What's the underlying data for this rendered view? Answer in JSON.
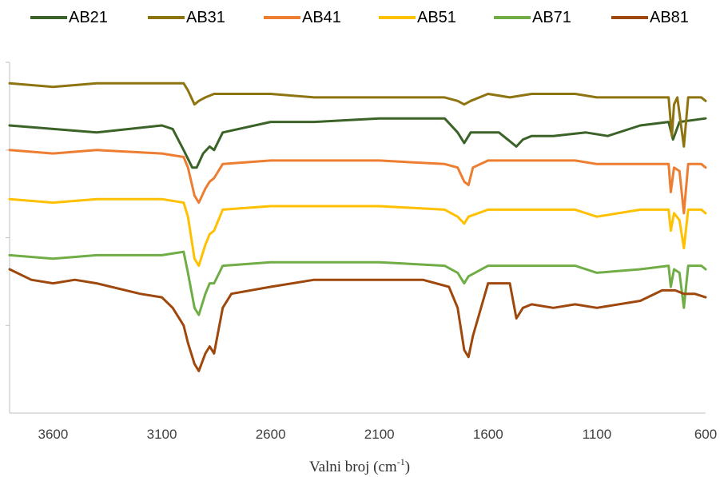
{
  "chart_data": {
    "type": "line",
    "title": "",
    "xlabel": "Valni broj (cm",
    "xlabel_sup": "-1",
    "xlabel_end": ")",
    "ylabel": "",
    "x_reversed": true,
    "xlim": [
      3800,
      600
    ],
    "ylim": [
      0,
      1
    ],
    "y_tick_values": [
      0.25,
      0.5,
      0.75,
      1.0
    ],
    "x_ticks": [
      3600,
      3100,
      2600,
      2100,
      1600,
      1100,
      600
    ],
    "x_tick_labels": [
      "3600",
      "3100",
      "2600",
      "2100",
      "1600",
      "1100",
      "600"
    ],
    "grid": false,
    "legend_position": "top",
    "series": [
      {
        "name": "AB21",
        "color": "#3b6227",
        "points": [
          [
            3800,
            0.82
          ],
          [
            3600,
            0.81
          ],
          [
            3400,
            0.8
          ],
          [
            3100,
            0.82
          ],
          [
            3050,
            0.81
          ],
          [
            3000,
            0.75
          ],
          [
            2960,
            0.7
          ],
          [
            2940,
            0.7
          ],
          [
            2910,
            0.74
          ],
          [
            2880,
            0.76
          ],
          [
            2860,
            0.75
          ],
          [
            2820,
            0.8
          ],
          [
            2600,
            0.83
          ],
          [
            2400,
            0.83
          ],
          [
            2100,
            0.84
          ],
          [
            1800,
            0.84
          ],
          [
            1740,
            0.8
          ],
          [
            1710,
            0.77
          ],
          [
            1680,
            0.8
          ],
          [
            1550,
            0.8
          ],
          [
            1470,
            0.76
          ],
          [
            1440,
            0.78
          ],
          [
            1400,
            0.79
          ],
          [
            1300,
            0.79
          ],
          [
            1150,
            0.8
          ],
          [
            1050,
            0.79
          ],
          [
            900,
            0.82
          ],
          [
            770,
            0.83
          ],
          [
            750,
            0.78
          ],
          [
            720,
            0.83
          ],
          [
            600,
            0.84
          ]
        ]
      },
      {
        "name": "AB31",
        "color": "#8e7410",
        "points": [
          [
            3800,
            0.94
          ],
          [
            3600,
            0.93
          ],
          [
            3400,
            0.94
          ],
          [
            3100,
            0.94
          ],
          [
            3000,
            0.94
          ],
          [
            2980,
            0.92
          ],
          [
            2950,
            0.88
          ],
          [
            2930,
            0.89
          ],
          [
            2900,
            0.9
          ],
          [
            2860,
            0.91
          ],
          [
            2600,
            0.91
          ],
          [
            2400,
            0.9
          ],
          [
            2100,
            0.9
          ],
          [
            1800,
            0.9
          ],
          [
            1740,
            0.89
          ],
          [
            1710,
            0.88
          ],
          [
            1680,
            0.89
          ],
          [
            1600,
            0.91
          ],
          [
            1500,
            0.9
          ],
          [
            1400,
            0.91
          ],
          [
            1200,
            0.91
          ],
          [
            1100,
            0.9
          ],
          [
            900,
            0.9
          ],
          [
            770,
            0.9
          ],
          [
            755,
            0.79
          ],
          [
            745,
            0.88
          ],
          [
            730,
            0.9
          ],
          [
            700,
            0.76
          ],
          [
            680,
            0.9
          ],
          [
            620,
            0.9
          ],
          [
            600,
            0.89
          ]
        ]
      },
      {
        "name": "AB41",
        "color": "#ed7d31",
        "points": [
          [
            3800,
            0.75
          ],
          [
            3600,
            0.74
          ],
          [
            3400,
            0.75
          ],
          [
            3100,
            0.74
          ],
          [
            3000,
            0.73
          ],
          [
            2980,
            0.7
          ],
          [
            2950,
            0.62
          ],
          [
            2930,
            0.6
          ],
          [
            2900,
            0.64
          ],
          [
            2880,
            0.66
          ],
          [
            2860,
            0.67
          ],
          [
            2820,
            0.71
          ],
          [
            2600,
            0.72
          ],
          [
            2400,
            0.72
          ],
          [
            2100,
            0.72
          ],
          [
            1800,
            0.71
          ],
          [
            1740,
            0.7
          ],
          [
            1710,
            0.66
          ],
          [
            1690,
            0.65
          ],
          [
            1670,
            0.7
          ],
          [
            1600,
            0.72
          ],
          [
            1500,
            0.72
          ],
          [
            1400,
            0.72
          ],
          [
            1200,
            0.72
          ],
          [
            1100,
            0.71
          ],
          [
            900,
            0.71
          ],
          [
            770,
            0.71
          ],
          [
            760,
            0.63
          ],
          [
            745,
            0.7
          ],
          [
            720,
            0.69
          ],
          [
            700,
            0.57
          ],
          [
            680,
            0.71
          ],
          [
            620,
            0.71
          ],
          [
            600,
            0.7
          ]
        ]
      },
      {
        "name": "AB51",
        "color": "#ffc000",
        "points": [
          [
            3800,
            0.61
          ],
          [
            3600,
            0.6
          ],
          [
            3400,
            0.61
          ],
          [
            3100,
            0.61
          ],
          [
            3000,
            0.6
          ],
          [
            2980,
            0.56
          ],
          [
            2950,
            0.44
          ],
          [
            2930,
            0.42
          ],
          [
            2900,
            0.48
          ],
          [
            2880,
            0.51
          ],
          [
            2860,
            0.52
          ],
          [
            2820,
            0.58
          ],
          [
            2600,
            0.59
          ],
          [
            2400,
            0.59
          ],
          [
            2100,
            0.59
          ],
          [
            1800,
            0.58
          ],
          [
            1740,
            0.56
          ],
          [
            1710,
            0.54
          ],
          [
            1690,
            0.56
          ],
          [
            1600,
            0.58
          ],
          [
            1500,
            0.58
          ],
          [
            1400,
            0.58
          ],
          [
            1200,
            0.58
          ],
          [
            1100,
            0.56
          ],
          [
            900,
            0.58
          ],
          [
            770,
            0.58
          ],
          [
            760,
            0.52
          ],
          [
            745,
            0.57
          ],
          [
            720,
            0.55
          ],
          [
            700,
            0.47
          ],
          [
            680,
            0.58
          ],
          [
            620,
            0.58
          ],
          [
            600,
            0.57
          ]
        ]
      },
      {
        "name": "AB71",
        "color": "#70ad47",
        "points": [
          [
            3800,
            0.45
          ],
          [
            3600,
            0.44
          ],
          [
            3400,
            0.45
          ],
          [
            3100,
            0.45
          ],
          [
            3000,
            0.46
          ],
          [
            2980,
            0.4
          ],
          [
            2950,
            0.3
          ],
          [
            2930,
            0.28
          ],
          [
            2900,
            0.34
          ],
          [
            2880,
            0.37
          ],
          [
            2860,
            0.37
          ],
          [
            2820,
            0.42
          ],
          [
            2600,
            0.43
          ],
          [
            2400,
            0.43
          ],
          [
            2100,
            0.43
          ],
          [
            1800,
            0.42
          ],
          [
            1740,
            0.4
          ],
          [
            1710,
            0.37
          ],
          [
            1690,
            0.39
          ],
          [
            1600,
            0.42
          ],
          [
            1500,
            0.42
          ],
          [
            1400,
            0.42
          ],
          [
            1200,
            0.42
          ],
          [
            1100,
            0.4
          ],
          [
            900,
            0.41
          ],
          [
            770,
            0.42
          ],
          [
            760,
            0.36
          ],
          [
            745,
            0.41
          ],
          [
            720,
            0.4
          ],
          [
            700,
            0.3
          ],
          [
            680,
            0.42
          ],
          [
            620,
            0.42
          ],
          [
            600,
            0.41
          ]
        ]
      },
      {
        "name": "AB81",
        "color": "#9e480e",
        "points": [
          [
            3800,
            0.41
          ],
          [
            3700,
            0.38
          ],
          [
            3600,
            0.37
          ],
          [
            3500,
            0.38
          ],
          [
            3400,
            0.37
          ],
          [
            3200,
            0.34
          ],
          [
            3100,
            0.33
          ],
          [
            3050,
            0.3
          ],
          [
            3000,
            0.25
          ],
          [
            2980,
            0.2
          ],
          [
            2950,
            0.14
          ],
          [
            2930,
            0.12
          ],
          [
            2900,
            0.17
          ],
          [
            2880,
            0.19
          ],
          [
            2860,
            0.17
          ],
          [
            2820,
            0.3
          ],
          [
            2780,
            0.34
          ],
          [
            2600,
            0.36
          ],
          [
            2400,
            0.38
          ],
          [
            2100,
            0.38
          ],
          [
            1900,
            0.38
          ],
          [
            1780,
            0.36
          ],
          [
            1740,
            0.3
          ],
          [
            1710,
            0.18
          ],
          [
            1690,
            0.16
          ],
          [
            1670,
            0.22
          ],
          [
            1600,
            0.37
          ],
          [
            1500,
            0.37
          ],
          [
            1470,
            0.27
          ],
          [
            1440,
            0.3
          ],
          [
            1400,
            0.31
          ],
          [
            1300,
            0.3
          ],
          [
            1200,
            0.31
          ],
          [
            1100,
            0.3
          ],
          [
            900,
            0.32
          ],
          [
            800,
            0.35
          ],
          [
            770,
            0.35
          ],
          [
            740,
            0.35
          ],
          [
            700,
            0.34
          ],
          [
            650,
            0.34
          ],
          [
            600,
            0.33
          ]
        ]
      }
    ]
  }
}
